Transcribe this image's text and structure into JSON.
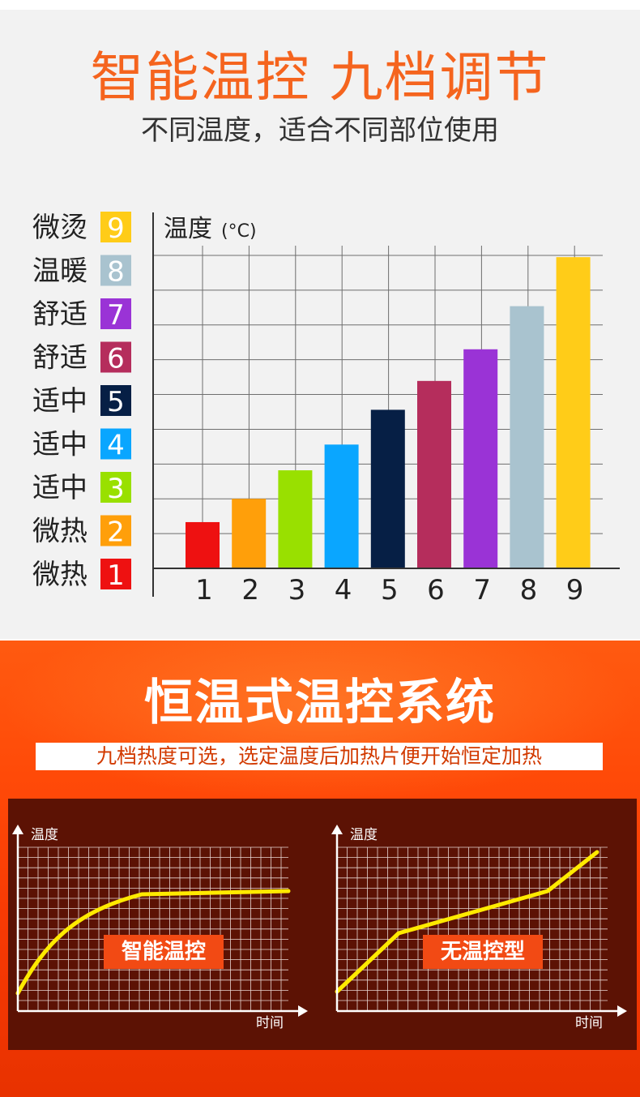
{
  "header": {
    "title": "智能温控 九档调节",
    "subtitle": "不同温度，适合不同部位使用"
  },
  "levels": [
    {
      "label": "微热",
      "level": "1",
      "color": "#ee1111"
    },
    {
      "label": "微热",
      "level": "2",
      "color": "#ff9f0a"
    },
    {
      "label": "适中",
      "level": "3",
      "color": "#99e000"
    },
    {
      "label": "适中",
      "level": "4",
      "color": "#0aa6ff"
    },
    {
      "label": "适中",
      "level": "5",
      "color": "#061f45"
    },
    {
      "label": "舒适",
      "level": "6",
      "color": "#b52d5c"
    },
    {
      "label": "舒适",
      "level": "7",
      "color": "#9a33d6"
    },
    {
      "label": "温暖",
      "level": "8",
      "color": "#a9c3cf"
    },
    {
      "label": "微烫",
      "level": "9",
      "color": "#ffcc18"
    }
  ],
  "chart_data": {
    "type": "bar",
    "ylabel": "温度",
    "yunit": "(°C)",
    "categories": [
      "1",
      "2",
      "3",
      "4",
      "5",
      "6",
      "7",
      "8",
      "9"
    ],
    "values": [
      1.33,
      2.0,
      2.82,
      3.56,
      4.56,
      5.39,
      6.3,
      7.54,
      8.95
    ],
    "ylim": [
      0,
      9
    ],
    "grid": true,
    "colors": [
      "#ee1111",
      "#ff9f0a",
      "#99e000",
      "#0aa6ff",
      "#061f45",
      "#b52d5c",
      "#9a33d6",
      "#a9c3cf",
      "#ffcc18"
    ]
  },
  "system": {
    "title": "恒温式温控系统",
    "subtitle": "九档热度可选，选定温度后加热片便开始恒定加热",
    "graphs": [
      {
        "ylabel": "温度",
        "xlabel": "时间",
        "badge": "智能温控"
      },
      {
        "ylabel": "温度",
        "xlabel": "时间",
        "badge": "无温控型"
      }
    ]
  }
}
